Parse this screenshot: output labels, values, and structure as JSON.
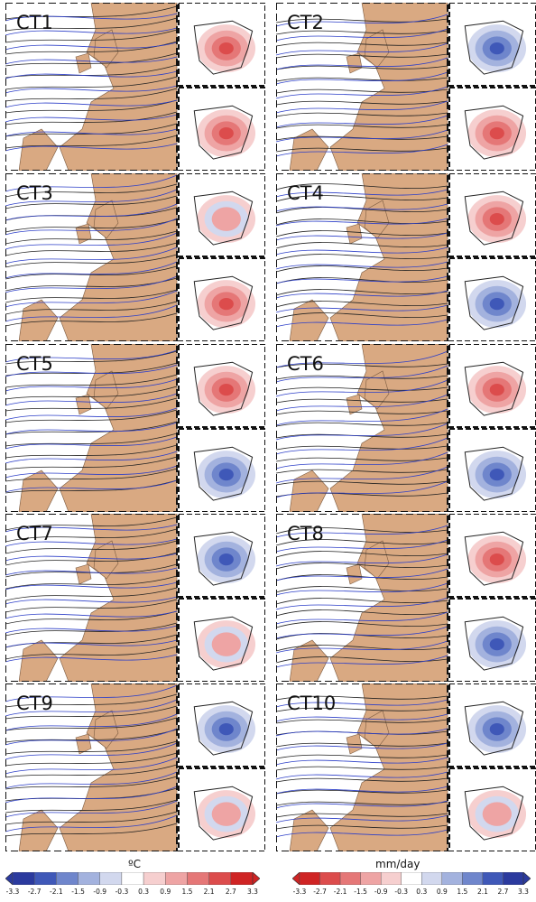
{
  "panels": [
    {
      "label": "CT1",
      "temp": "warm",
      "precip": "dry"
    },
    {
      "label": "CT2",
      "temp": "cool",
      "precip": "dry"
    },
    {
      "label": "CT3",
      "temp": "mixed",
      "precip": "dry"
    },
    {
      "label": "CT4",
      "temp": "warm",
      "precip": "wet"
    },
    {
      "label": "CT5",
      "temp": "warm",
      "precip": "wet"
    },
    {
      "label": "CT6",
      "temp": "warm",
      "precip": "wet"
    },
    {
      "label": "CT7",
      "temp": "cool",
      "precip": "mixed"
    },
    {
      "label": "CT8",
      "temp": "warm",
      "precip": "wet"
    },
    {
      "label": "CT9",
      "temp": "cool",
      "precip": "mixed"
    },
    {
      "label": "CT10",
      "temp": "cool",
      "precip": "mixed"
    }
  ],
  "colorbars": {
    "temperature": {
      "unit": "ºC",
      "ticks": [
        "-3.3",
        "-2.7",
        "-2.1",
        "-1.5",
        "-0.9",
        "-0.3",
        "0.3",
        "0.9",
        "1.5",
        "2.1",
        "2.7",
        "3.3"
      ],
      "colors": [
        "#2b3a9e",
        "#3f58b8",
        "#6f86cc",
        "#a3b2de",
        "#d2d8ee",
        "#ffffff",
        "#f6cfcf",
        "#eea4a4",
        "#e57777",
        "#dc4c4c",
        "#cf2424"
      ]
    },
    "precipitation": {
      "unit": "mm/day",
      "ticks": [
        "-3.3",
        "-2.7",
        "-2.1",
        "-1.5",
        "-0.9",
        "-0.3",
        "0.3",
        "0.9",
        "1.5",
        "2.1",
        "2.7",
        "3.3"
      ],
      "colors": [
        "#cf2424",
        "#dc4c4c",
        "#e57777",
        "#eea4a4",
        "#f6cfcf",
        "#ffffff",
        "#d2d8ee",
        "#a3b2de",
        "#6f86cc",
        "#3f58b8",
        "#2b3a9e"
      ]
    }
  },
  "palette": {
    "land": "#d9a982",
    "isobar": "#222222",
    "geopotential": "#2d3fc8"
  }
}
